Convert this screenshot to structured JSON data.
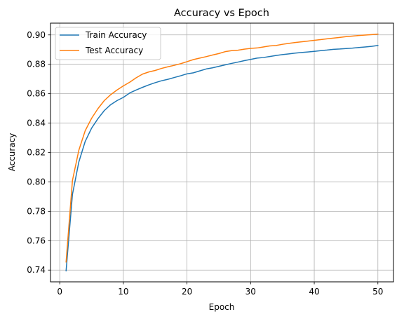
{
  "chart_data": {
    "type": "line",
    "title": "Accuracy vs Epoch",
    "xlabel": "Epoch",
    "ylabel": "Accuracy",
    "xlim": [
      -1.45,
      52.45
    ],
    "ylim": [
      0.732,
      0.908
    ],
    "xticks": [
      0,
      10,
      20,
      30,
      40,
      50
    ],
    "yticks": [
      0.74,
      0.76,
      0.78,
      0.8,
      0.82,
      0.84,
      0.86,
      0.88,
      0.9
    ],
    "ytick_labels": [
      "0.74",
      "0.76",
      "0.78",
      "0.80",
      "0.82",
      "0.84",
      "0.86",
      "0.88",
      "0.90"
    ],
    "grid": true,
    "legend_position": "top-left",
    "x": [
      1,
      2,
      3,
      4,
      5,
      6,
      7,
      8,
      9,
      10,
      11,
      12,
      13,
      14,
      15,
      16,
      17,
      18,
      19,
      20,
      21,
      22,
      23,
      24,
      25,
      26,
      27,
      28,
      29,
      30,
      31,
      32,
      33,
      34,
      35,
      36,
      37,
      38,
      39,
      40,
      41,
      42,
      43,
      44,
      45,
      46,
      47,
      48,
      49,
      50
    ],
    "series": [
      {
        "name": "Train Accuracy",
        "color": "#1f77b4",
        "values": [
          0.7395,
          0.7915,
          0.8135,
          0.8275,
          0.8365,
          0.843,
          0.8485,
          0.8525,
          0.8553,
          0.8575,
          0.8605,
          0.8625,
          0.8643,
          0.866,
          0.8675,
          0.8688,
          0.8698,
          0.871,
          0.8722,
          0.8735,
          0.8742,
          0.8755,
          0.8768,
          0.8776,
          0.8786,
          0.8796,
          0.8806,
          0.8815,
          0.8825,
          0.8833,
          0.8842,
          0.8846,
          0.8853,
          0.886,
          0.8866,
          0.8871,
          0.8876,
          0.888,
          0.8884,
          0.8888,
          0.8893,
          0.8897,
          0.8902,
          0.8904,
          0.8907,
          0.891,
          0.8914,
          0.8918,
          0.8922,
          0.8928
        ]
      },
      {
        "name": "Test Accuracy",
        "color": "#ff7f0e",
        "values": [
          0.7455,
          0.801,
          0.8215,
          0.8348,
          0.8432,
          0.8498,
          0.8553,
          0.8593,
          0.8625,
          0.8653,
          0.8678,
          0.8708,
          0.8733,
          0.8748,
          0.8758,
          0.8772,
          0.8783,
          0.8793,
          0.8804,
          0.8818,
          0.8832,
          0.8842,
          0.8852,
          0.8863,
          0.8873,
          0.8886,
          0.8893,
          0.8896,
          0.8903,
          0.8908,
          0.8911,
          0.8918,
          0.8925,
          0.8928,
          0.8936,
          0.8942,
          0.8948,
          0.8953,
          0.8958,
          0.8963,
          0.8968,
          0.8973,
          0.8978,
          0.8983,
          0.8988,
          0.8992,
          0.8996,
          0.8999,
          0.9002,
          0.9005
        ]
      }
    ]
  }
}
